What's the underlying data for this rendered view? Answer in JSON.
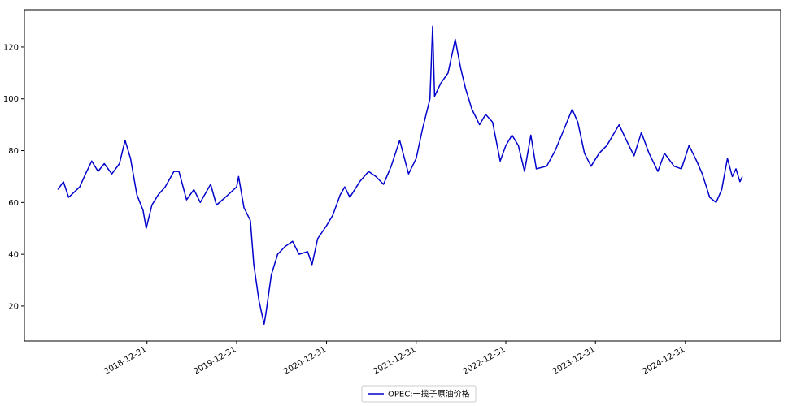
{
  "chart_data": {
    "type": "line",
    "x": [
      "2018-01-02",
      "2018-01-25",
      "2018-02-15",
      "2018-03-10",
      "2018-04-01",
      "2018-04-25",
      "2018-05-20",
      "2018-06-15",
      "2018-07-10",
      "2018-08-10",
      "2018-09-10",
      "2018-10-03",
      "2018-10-25",
      "2018-11-20",
      "2018-12-15",
      "2018-12-28",
      "2019-01-20",
      "2019-02-15",
      "2019-03-15",
      "2019-04-20",
      "2019-05-10",
      "2019-06-10",
      "2019-07-10",
      "2019-08-05",
      "2019-09-16",
      "2019-10-10",
      "2019-11-15",
      "2019-12-31",
      "2020-01-08",
      "2020-01-30",
      "2020-02-25",
      "2020-03-10",
      "2020-03-31",
      "2020-04-21",
      "2020-04-28",
      "2020-05-20",
      "2020-06-15",
      "2020-07-15",
      "2020-08-15",
      "2020-09-10",
      "2020-10-15",
      "2020-11-02",
      "2020-11-25",
      "2020-12-31",
      "2021-01-25",
      "2021-02-25",
      "2021-03-15",
      "2021-04-05",
      "2021-05-15",
      "2021-06-20",
      "2021-07-20",
      "2021-08-20",
      "2021-09-20",
      "2021-10-25",
      "2021-11-30",
      "2021-12-31",
      "2022-01-25",
      "2022-02-25",
      "2022-03-08",
      "2022-03-16",
      "2022-04-10",
      "2022-05-10",
      "2022-06-08",
      "2022-06-30",
      "2022-07-20",
      "2022-08-15",
      "2022-09-15",
      "2022-10-10",
      "2022-11-07",
      "2022-12-08",
      "2022-12-31",
      "2023-01-25",
      "2023-02-20",
      "2023-03-17",
      "2023-04-12",
      "2023-05-04",
      "2023-06-15",
      "2023-07-20",
      "2023-08-15",
      "2023-09-27",
      "2023-10-20",
      "2023-11-16",
      "2023-12-13",
      "2024-01-15",
      "2024-02-15",
      "2024-04-05",
      "2024-05-05",
      "2024-06-05",
      "2024-07-05",
      "2024-08-05",
      "2024-09-10",
      "2024-10-07",
      "2024-11-15",
      "2024-12-15",
      "2025-01-15",
      "2025-02-15",
      "2025-03-10",
      "2025-04-09",
      "2025-05-05",
      "2025-05-28",
      "2025-06-20",
      "2025-07-10",
      "2025-07-25",
      "2025-08-10",
      "2025-08-20"
    ],
    "series": [
      {
        "name": "OPEC:一揽子原油价格",
        "color": "#0000cc",
        "values": [
          65,
          68,
          62,
          64,
          66,
          71,
          76,
          72,
          75,
          71,
          75,
          84,
          77,
          63,
          57,
          50,
          59,
          63,
          66,
          72,
          72,
          61,
          65,
          60,
          67,
          59,
          62,
          66,
          70,
          58,
          53,
          36,
          22,
          13,
          17,
          32,
          40,
          43,
          45,
          40,
          41,
          36,
          46,
          51,
          55,
          63,
          66,
          62,
          68,
          72,
          70,
          67,
          74,
          84,
          71,
          77,
          88,
          100,
          128,
          101,
          106,
          110,
          123,
          112,
          104,
          96,
          90,
          94,
          91,
          76,
          82,
          86,
          82,
          72,
          86,
          73,
          74,
          80,
          86,
          96,
          91,
          79,
          74,
          79,
          82,
          90,
          84,
          78,
          87,
          79,
          72,
          79,
          74,
          73,
          82,
          76,
          71,
          62,
          60,
          65,
          77,
          70,
          73,
          68,
          70
        ]
      }
    ],
    "xlim": [
      "2017-08-19",
      "2026-01-23"
    ],
    "xticks": [
      "2018-12-31",
      "2019-12-31",
      "2020-12-31",
      "2021-12-31",
      "2022-12-31",
      "2023-12-31",
      "2024-12-31"
    ],
    "ylim": [
      6.5,
      134.4
    ],
    "yticks": [
      20,
      40,
      60,
      80,
      100,
      120
    ],
    "legend": "bottom"
  }
}
